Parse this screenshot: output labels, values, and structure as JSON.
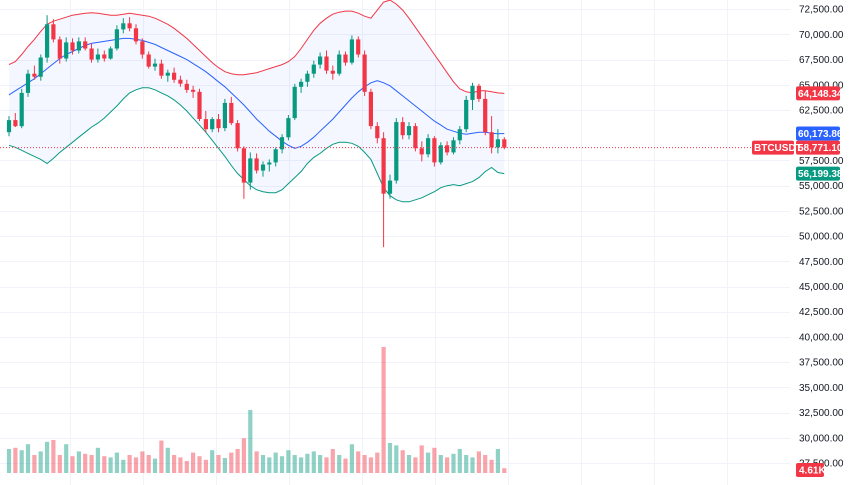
{
  "chart_data": {
    "type": "candlestick",
    "symbol": "BTCUSDT",
    "y_axis": {
      "ylim": [
        28000,
        74000
      ],
      "ticks": [
        72500,
        70000,
        67500,
        65000,
        62500,
        57500,
        55000,
        52500,
        50000,
        47500,
        45000,
        42500,
        40000,
        37500,
        35000,
        32500,
        30000,
        27500
      ],
      "tick_labels": [
        "72,500.00",
        "70,000.00",
        "67,500.00",
        "65,000.00",
        "62,500.00",
        "57,500.00",
        "55,000.00",
        "52,500.00",
        "50,000.00",
        "47,500.00",
        "45,000.00",
        "42,500.00",
        "40,000.00",
        "37,500.00",
        "35,000.00",
        "32,500.00",
        "30,000.00",
        "27,500.00"
      ]
    },
    "price_labels": [
      {
        "name": "bb-upper",
        "text": "64,148.34",
        "value": 64148.34,
        "color": "#f23645"
      },
      {
        "name": "bb-basis",
        "text": "60,173.86",
        "value": 60173.86,
        "color": "#2962ff"
      },
      {
        "name": "last-price",
        "text": "58,771.10",
        "value": 58771.1,
        "color": "#f23645",
        "symbol": "BTCUSDT"
      },
      {
        "name": "bb-lower",
        "text": "56,199.38",
        "value": 56199.38,
        "color": "#089981"
      }
    ],
    "volume_label": {
      "text": "4.61K",
      "color": "#f23645"
    },
    "series": [
      {
        "name": "price",
        "ohlc": [
          [
            60300,
            61900,
            59900,
            61500
          ],
          [
            61500,
            62200,
            60800,
            60900
          ],
          [
            60900,
            64600,
            60700,
            64200
          ],
          [
            64200,
            66500,
            63800,
            66100
          ],
          [
            66100,
            66900,
            65500,
            65800
          ],
          [
            65800,
            68000,
            65400,
            67700
          ],
          [
            67700,
            71900,
            67200,
            71000
          ],
          [
            71000,
            71500,
            69200,
            69500
          ],
          [
            69500,
            69800,
            67100,
            67600
          ],
          [
            67600,
            69700,
            67300,
            69200
          ],
          [
            69200,
            69600,
            68000,
            68400
          ],
          [
            68400,
            69700,
            68100,
            69300
          ],
          [
            69300,
            69700,
            68400,
            68600
          ],
          [
            68600,
            69100,
            67200,
            67500
          ],
          [
            67500,
            68600,
            67200,
            68000
          ],
          [
            68000,
            68400,
            67300,
            67600
          ],
          [
            67600,
            68800,
            67500,
            68600
          ],
          [
            68600,
            70900,
            68400,
            70500
          ],
          [
            70500,
            71600,
            70100,
            71100
          ],
          [
            71100,
            71700,
            70300,
            70600
          ],
          [
            70600,
            71000,
            69000,
            69300
          ],
          [
            69300,
            69600,
            67600,
            68000
          ],
          [
            68000,
            68300,
            66600,
            66800
          ],
          [
            66800,
            67600,
            66400,
            67100
          ],
          [
            67100,
            67500,
            65600,
            65900
          ],
          [
            65900,
            66500,
            65300,
            66200
          ],
          [
            66200,
            66700,
            65200,
            65500
          ],
          [
            65500,
            65900,
            64800,
            65100
          ],
          [
            65100,
            65500,
            64200,
            64500
          ],
          [
            64500,
            64900,
            63700,
            64300
          ],
          [
            64300,
            64600,
            61400,
            61600
          ],
          [
            61600,
            62400,
            60300,
            60600
          ],
          [
            60600,
            61800,
            60300,
            61600
          ],
          [
            61600,
            62100,
            60300,
            60700
          ],
          [
            60700,
            63600,
            60400,
            63200
          ],
          [
            63200,
            63800,
            61000,
            61200
          ],
          [
            61200,
            61500,
            58400,
            58700
          ],
          [
            58700,
            58900,
            53700,
            55300
          ],
          [
            55300,
            58300,
            54600,
            57700
          ],
          [
            57700,
            58200,
            56200,
            56500
          ],
          [
            56500,
            57400,
            55900,
            57100
          ],
          [
            57100,
            57600,
            56400,
            57300
          ],
          [
            57300,
            58800,
            56900,
            58600
          ],
          [
            58600,
            60100,
            58200,
            59800
          ],
          [
            59800,
            62000,
            59500,
            61700
          ],
          [
            61700,
            65100,
            61500,
            64800
          ],
          [
            64800,
            65600,
            64200,
            65300
          ],
          [
            65300,
            66400,
            64800,
            66100
          ],
          [
            66100,
            67400,
            65700,
            67000
          ],
          [
            67000,
            68200,
            66600,
            67800
          ],
          [
            67800,
            68400,
            66100,
            66400
          ],
          [
            66400,
            66900,
            65500,
            66100
          ],
          [
            66100,
            68400,
            65900,
            68000
          ],
          [
            68000,
            68300,
            66900,
            67200
          ],
          [
            67200,
            69900,
            67000,
            69500
          ],
          [
            69500,
            69800,
            67700,
            68000
          ],
          [
            68000,
            68400,
            63900,
            64300
          ],
          [
            64300,
            64600,
            60600,
            60900
          ],
          [
            60900,
            61300,
            59200,
            59700
          ],
          [
            59700,
            60300,
            48900,
            54200
          ],
          [
            54200,
            56100,
            53700,
            55500
          ],
          [
            55500,
            61700,
            55200,
            61300
          ],
          [
            61300,
            61800,
            59600,
            60000
          ],
          [
            60000,
            61300,
            59600,
            60900
          ],
          [
            60900,
            61200,
            58400,
            58700
          ],
          [
            58700,
            59400,
            57400,
            58100
          ],
          [
            58100,
            60100,
            57800,
            59700
          ],
          [
            59700,
            59900,
            56900,
            57300
          ],
          [
            57300,
            59300,
            57100,
            59000
          ],
          [
            59000,
            59400,
            58000,
            58300
          ],
          [
            58300,
            59800,
            58100,
            59500
          ],
          [
            59500,
            60900,
            59100,
            60600
          ],
          [
            60600,
            63900,
            60300,
            63500
          ],
          [
            63500,
            65200,
            62500,
            64900
          ],
          [
            64900,
            65100,
            63300,
            63600
          ],
          [
            63600,
            64400,
            60000,
            60300
          ],
          [
            60300,
            61900,
            58200,
            58800
          ],
          [
            58800,
            60600,
            58200,
            59600
          ],
          [
            59600,
            59800,
            58600,
            58771.1
          ]
        ]
      },
      {
        "name": "bb-basis",
        "values": [
          64000,
          64400,
          64800,
          65200,
          65600,
          66100,
          66600,
          67100,
          67600,
          68000,
          68300,
          68600,
          68900,
          69100,
          69200,
          69300,
          69400,
          69500,
          69600,
          69600,
          69500,
          69400,
          69200,
          69000,
          68700,
          68400,
          68100,
          67800,
          67500,
          67100,
          66700,
          66300,
          65800,
          65300,
          64800,
          64200,
          63600,
          63000,
          62300,
          61600,
          61000,
          60400,
          59900,
          59400,
          59000,
          58700,
          58900,
          59300,
          59800,
          60400,
          61000,
          61600,
          62300,
          63000,
          63700,
          64300,
          64800,
          65200,
          65400,
          65200,
          64900,
          64400,
          63900,
          63400,
          62900,
          62400,
          61900,
          61400,
          61000,
          60600,
          60400,
          60200,
          60100,
          60200,
          60300,
          60300,
          60200,
          60150,
          60173.86
        ]
      },
      {
        "name": "bb-upper",
        "values": [
          67000,
          67300,
          68000,
          68800,
          69500,
          70300,
          71000,
          71300,
          71500,
          71700,
          71900,
          72000,
          72100,
          72150,
          72100,
          72000,
          71900,
          71900,
          72000,
          72100,
          72000,
          71900,
          71800,
          71600,
          71300,
          71000,
          70600,
          70100,
          69600,
          69000,
          68400,
          67800,
          67200,
          66700,
          66300,
          66100,
          66000,
          66000,
          66100,
          66200,
          66400,
          66600,
          66800,
          67000,
          67300,
          67800,
          68600,
          69500,
          70400,
          71100,
          71600,
          72000,
          72200,
          72300,
          72300,
          72100,
          71800,
          71600,
          72400,
          73200,
          73400,
          73000,
          72400,
          71600,
          70700,
          69800,
          68900,
          68000,
          67100,
          66200,
          65300,
          64600,
          64300,
          64200,
          64400,
          64400,
          64300,
          64200,
          64148.34
        ]
      },
      {
        "name": "bb-lower",
        "values": [
          59000,
          58800,
          58500,
          58200,
          57900,
          57600,
          57200,
          57700,
          58300,
          58800,
          59300,
          59800,
          60300,
          60800,
          61200,
          61700,
          62300,
          62900,
          63600,
          64200,
          64500,
          64700,
          64700,
          64500,
          64200,
          63900,
          63500,
          63000,
          62400,
          61700,
          61000,
          60300,
          59500,
          58700,
          57900,
          57000,
          56200,
          55600,
          55000,
          54600,
          54400,
          54300,
          54300,
          54600,
          55200,
          55800,
          56400,
          57200,
          57800,
          58200,
          58700,
          59100,
          59300,
          59300,
          59200,
          58900,
          58300,
          57600,
          56200,
          54800,
          54000,
          53600,
          53400,
          53400,
          53600,
          53800,
          54100,
          54400,
          54800,
          55000,
          55100,
          55000,
          55200,
          55400,
          55800,
          56400,
          56800,
          56300,
          56199.38
        ]
      },
      {
        "name": "volume",
        "values": [
          0.4,
          0.42,
          0.38,
          0.48,
          0.3,
          0.36,
          0.52,
          0.55,
          0.3,
          0.48,
          0.28,
          0.36,
          0.32,
          0.3,
          0.42,
          0.28,
          0.26,
          0.34,
          0.22,
          0.3,
          0.26,
          0.36,
          0.3,
          0.24,
          0.54,
          0.42,
          0.3,
          0.26,
          0.2,
          0.34,
          0.28,
          0.22,
          0.38,
          0.3,
          0.25,
          0.34,
          0.4,
          0.58,
          1.05,
          0.36,
          0.3,
          0.26,
          0.34,
          0.28,
          0.38,
          0.3,
          0.26,
          0.32,
          0.36,
          0.3,
          0.26,
          0.4,
          0.3,
          0.24,
          0.48,
          0.36,
          0.3,
          0.26,
          0.34,
          2.1,
          0.5,
          0.46,
          0.38,
          0.3,
          0.26,
          0.46,
          0.34,
          0.42,
          0.3,
          0.26,
          0.32,
          0.4,
          0.3,
          0.26,
          0.36,
          0.3,
          0.22,
          0.4,
          0.08
        ]
      }
    ]
  }
}
